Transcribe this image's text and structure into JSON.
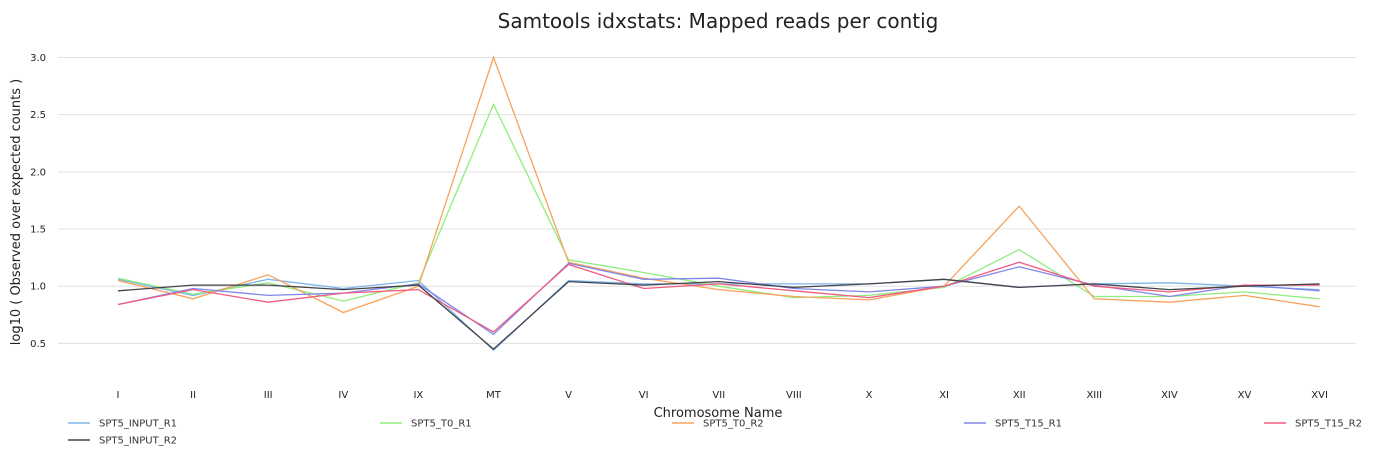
{
  "chart_data": {
    "type": "line",
    "title": "Samtools idxstats: Mapped reads per contig",
    "xlabel": "Chromosome Name",
    "ylabel": "log10 ( Observed over expected counts )",
    "ylim": [
      0.25,
      3.1
    ],
    "yticks": [
      0.5,
      1.0,
      1.5,
      2.0,
      2.5,
      3.0
    ],
    "ytick_labels": [
      "0.5",
      "1.0",
      "1.5",
      "2.0",
      "2.5",
      "3.0"
    ],
    "grid": true,
    "legend_position": "bottom",
    "categories": [
      "I",
      "II",
      "III",
      "IV",
      "IX",
      "MT",
      "V",
      "VI",
      "VII",
      "VIII",
      "X",
      "XI",
      "XII",
      "XIII",
      "XIV",
      "XV",
      "XVI"
    ],
    "series": [
      {
        "name": "SPT5_INPUT_R1",
        "color": "#7cb5ec",
        "values": [
          1.06,
          0.92,
          1.06,
          0.98,
          1.05,
          0.44,
          1.05,
          1.02,
          1.02,
          1.02,
          1.02,
          1.06,
          0.99,
          1.02,
          1.03,
          1.0,
          0.97
        ]
      },
      {
        "name": "SPT5_T0_R1",
        "color": "#90ed7d",
        "values": [
          1.07,
          0.93,
          1.03,
          0.87,
          1.03,
          2.59,
          1.23,
          1.12,
          1.0,
          0.9,
          0.92,
          0.99,
          1.32,
          0.91,
          0.91,
          0.95,
          0.89
        ]
      },
      {
        "name": "SPT5_T0_R2",
        "color": "#f7a35c",
        "values": [
          1.05,
          0.89,
          1.1,
          0.77,
          1.0,
          3.0,
          1.21,
          1.07,
          0.97,
          0.91,
          0.88,
          1.0,
          1.7,
          0.89,
          0.86,
          0.92,
          0.82
        ]
      },
      {
        "name": "SPT5_T15_R1",
        "color": "#8085e9",
        "values": [
          0.84,
          0.98,
          0.92,
          0.94,
          1.02,
          0.58,
          1.2,
          1.06,
          1.07,
          0.98,
          0.95,
          1.0,
          1.17,
          1.01,
          0.91,
          1.01,
          0.96
        ]
      },
      {
        "name": "SPT5_T15_R2",
        "color": "#f15c80",
        "values": [
          0.84,
          0.97,
          0.86,
          0.94,
          0.97,
          0.6,
          1.19,
          0.98,
          1.02,
          0.96,
          0.9,
          1.0,
          1.21,
          1.0,
          0.95,
          1.01,
          1.01
        ]
      },
      {
        "name": "SPT5_INPUT_R2",
        "color": "#434348",
        "values": [
          0.96,
          1.01,
          1.01,
          0.97,
          1.01,
          0.45,
          1.04,
          1.01,
          1.04,
          0.99,
          1.02,
          1.06,
          0.99,
          1.02,
          0.97,
          1.0,
          1.02
        ]
      }
    ]
  }
}
